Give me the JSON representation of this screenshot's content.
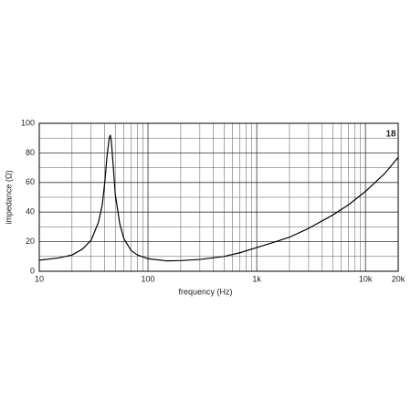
{
  "chart_data": {
    "type": "line",
    "logo": "18",
    "xlabel": "frequency (Hz)",
    "ylabel": "impedance (Ω)",
    "x": [
      10,
      15,
      20,
      25,
      30,
      35,
      38,
      40,
      42,
      44,
      45,
      46,
      48,
      50,
      55,
      60,
      70,
      80,
      100,
      150,
      200,
      300,
      500,
      700,
      1000,
      1500,
      2000,
      3000,
      5000,
      7000,
      10000,
      15000,
      20000
    ],
    "series": [
      {
        "name": "impedance",
        "color": "#000000",
        "values": [
          7.5,
          9,
          11,
          15,
          21,
          33,
          45,
          60,
          78,
          90,
          92,
          88,
          70,
          52,
          32,
          22,
          14,
          11,
          8.5,
          7,
          7.2,
          8,
          10,
          12.5,
          16,
          20,
          23,
          29,
          38,
          45,
          54,
          66,
          77
        ]
      }
    ],
    "xlim": [
      10,
      20000
    ],
    "ylim": [
      0,
      100
    ],
    "xticks": [
      10,
      100,
      {
        "value": 1000,
        "label": "1k"
      },
      {
        "value": 10000,
        "label": "10k"
      },
      {
        "value": 20000,
        "label": "20k"
      }
    ],
    "yticks": [
      0,
      20,
      40,
      60,
      80,
      100
    ],
    "xscale": "log",
    "grid": true
  }
}
